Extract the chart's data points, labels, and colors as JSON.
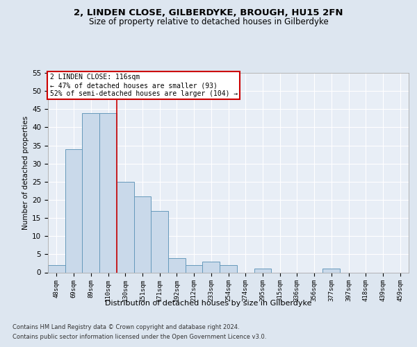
{
  "title1": "2, LINDEN CLOSE, GILBERDYKE, BROUGH, HU15 2FN",
  "title2": "Size of property relative to detached houses in Gilberdyke",
  "xlabel": "Distribution of detached houses by size in Gilberdyke",
  "ylabel": "Number of detached properties",
  "categories": [
    "48sqm",
    "69sqm",
    "89sqm",
    "110sqm",
    "130sqm",
    "151sqm",
    "171sqm",
    "192sqm",
    "212sqm",
    "233sqm",
    "254sqm",
    "274sqm",
    "295sqm",
    "315sqm",
    "336sqm",
    "356sqm",
    "377sqm",
    "397sqm",
    "418sqm",
    "439sqm",
    "459sqm"
  ],
  "values": [
    2,
    34,
    44,
    44,
    25,
    21,
    17,
    4,
    2,
    3,
    2,
    0,
    1,
    0,
    0,
    0,
    1,
    0,
    0,
    0,
    0
  ],
  "bar_color": "#c9d9ea",
  "bar_edge_color": "#6699bb",
  "red_line_index": 3,
  "annotation_text": "2 LINDEN CLOSE: 116sqm\n← 47% of detached houses are smaller (93)\n52% of semi-detached houses are larger (104) →",
  "annotation_box_color": "#ffffff",
  "annotation_box_edge_color": "#cc0000",
  "ylim": [
    0,
    55
  ],
  "yticks": [
    0,
    5,
    10,
    15,
    20,
    25,
    30,
    35,
    40,
    45,
    50,
    55
  ],
  "footer1": "Contains HM Land Registry data © Crown copyright and database right 2024.",
  "footer2": "Contains public sector information licensed under the Open Government Licence v3.0.",
  "bg_color": "#dde6f0",
  "plot_bg_color": "#e8eef6"
}
